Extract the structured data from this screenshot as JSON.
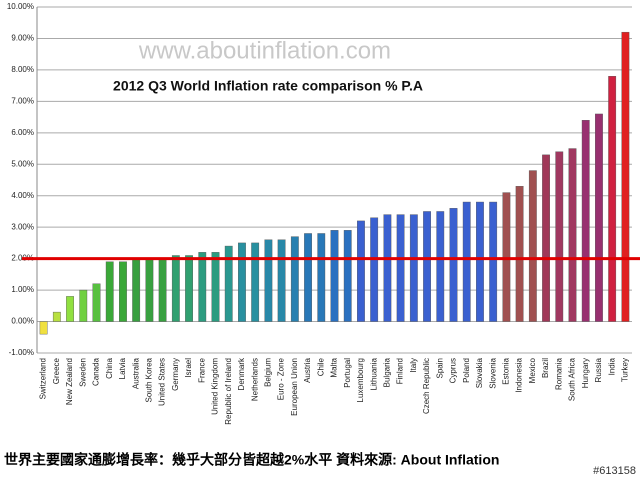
{
  "chart_data": {
    "type": "bar",
    "title": "2012 Q3 World Inflation rate comparison % P.A",
    "watermark": "www.aboutinflation.com",
    "caption": "世界主要國家通膨增長率：幾乎大部分皆超越2%水平 資料來源: About Inflation",
    "image_tag": "#613158",
    "categories": [
      "Switzerland",
      "Greece",
      "New Zealand",
      "Sweden",
      "Canada",
      "China",
      "Latvia",
      "Australia",
      "South Korea",
      "United States",
      "Germany",
      "Israel",
      "France",
      "United Kingdom",
      "Republic of Ireland",
      "Denmark",
      "Netherlands",
      "Belgium",
      "Euro - Zone",
      "European Union",
      "Austria",
      "Chile",
      "Malta",
      "Portugal",
      "Luxembourg",
      "Lithuania",
      "Bulgaria",
      "Finland",
      "Italy",
      "Czech Republic",
      "Spain",
      "Cyprus",
      "Poland",
      "Slovakia",
      "Slovenia",
      "Estonia",
      "Indonesia",
      "Mexico",
      "Brazil",
      "Romania",
      "South Africa",
      "Hungary",
      "Russia",
      "India",
      "Turkey"
    ],
    "values": [
      -0.4,
      0.3,
      0.8,
      1.0,
      1.2,
      1.9,
      1.9,
      2.0,
      2.0,
      2.0,
      2.1,
      2.1,
      2.2,
      2.2,
      2.4,
      2.5,
      2.5,
      2.6,
      2.6,
      2.7,
      2.8,
      2.8,
      2.9,
      2.9,
      3.2,
      3.3,
      3.4,
      3.4,
      3.4,
      3.5,
      3.5,
      3.6,
      3.8,
      3.8,
      3.8,
      4.1,
      4.3,
      4.8,
      5.3,
      5.4,
      5.5,
      6.4,
      6.6,
      7.8,
      9.2
    ],
    "colors": [
      "#f0e040",
      "#b8e040",
      "#90e040",
      "#70d040",
      "#58c040",
      "#3aa838",
      "#3aa838",
      "#38a040",
      "#38a040",
      "#38a040",
      "#30a070",
      "#30a070",
      "#2c9c80",
      "#2c9c80",
      "#2a9890",
      "#2890a0",
      "#2890a0",
      "#2888a8",
      "#2888a8",
      "#2880b0",
      "#2878b8",
      "#2878b8",
      "#2a70c0",
      "#2a70c0",
      "#3a60d0",
      "#3a60d0",
      "#3a60d0",
      "#3a60d0",
      "#3a60d0",
      "#3a60d0",
      "#3a60d0",
      "#3a60d0",
      "#3a60d0",
      "#3a60d0",
      "#3a60d0",
      "#a05050",
      "#a05050",
      "#a05050",
      "#a03858",
      "#a03860",
      "#a03860",
      "#983070",
      "#983070",
      "#d02040",
      "#e02020"
    ],
    "ylim": [
      -1,
      10
    ],
    "yticks": [
      {
        "value": -1,
        "label": "-1.00%"
      },
      {
        "value": 0,
        "label": "0.00%"
      },
      {
        "value": 1,
        "label": "1.00%"
      },
      {
        "value": 2,
        "label": "2.00%"
      },
      {
        "value": 3,
        "label": "3.00%"
      },
      {
        "value": 4,
        "label": "4.00%"
      },
      {
        "value": 5,
        "label": "5.00%"
      },
      {
        "value": 6,
        "label": "6.00%"
      },
      {
        "value": 7,
        "label": "7.00%"
      },
      {
        "value": 8,
        "label": "8.00%"
      },
      {
        "value": 9,
        "label": "9.00%"
      },
      {
        "value": 10,
        "label": "10.00%"
      }
    ],
    "reference_line": 2,
    "reference_color": "#e00000",
    "grid": true
  }
}
